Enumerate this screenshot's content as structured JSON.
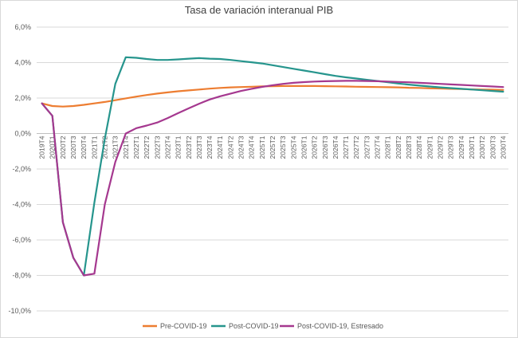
{
  "chart_data": {
    "type": "line",
    "title": "Tasa de variación interanual PIB",
    "xlabel": "",
    "ylabel": "",
    "ylim": [
      -10,
      6
    ],
    "yticks": [
      6,
      4,
      2,
      0,
      -2,
      -4,
      -6,
      -8,
      -10
    ],
    "ytick_labels": [
      "6,0%",
      "4,0%",
      "2,0%",
      "0,0%",
      "-2,0%",
      "-4,0%",
      "-6,0%",
      "-8,0%",
      "-10,0%"
    ],
    "grid": "horizontal",
    "legend_position": "bottom",
    "categories": [
      "2019T4",
      "2020T1",
      "2020T2",
      "2020T3",
      "2020T4",
      "2021T1",
      "2021T2",
      "2021T3",
      "2021T4",
      "2022T1",
      "2022T2",
      "2022T3",
      "2022T4",
      "2023T1",
      "2023T2",
      "2023T3",
      "2023T4",
      "2024T1",
      "2024T2",
      "2024T3",
      "2024T4",
      "2025T1",
      "2025T2",
      "2025T3",
      "2025T4",
      "2026T1",
      "2026T2",
      "2026T3",
      "2026T4",
      "2027T1",
      "2027T2",
      "2027T3",
      "2027T4",
      "2028T1",
      "2028T2",
      "2028T3",
      "2028T4",
      "2029T1",
      "2029T2",
      "2029T3",
      "2029T4",
      "2030T1",
      "2030T2",
      "2030T3",
      "2030T4"
    ],
    "series": [
      {
        "name": "Pre-COVID-19",
        "color": "#ED7D31",
        "values": [
          1.7,
          1.55,
          1.52,
          1.55,
          1.62,
          1.7,
          1.78,
          1.88,
          1.98,
          2.08,
          2.17,
          2.25,
          2.32,
          2.38,
          2.43,
          2.48,
          2.53,
          2.57,
          2.6,
          2.62,
          2.64,
          2.66,
          2.67,
          2.68,
          2.68,
          2.68,
          2.68,
          2.67,
          2.66,
          2.65,
          2.64,
          2.63,
          2.62,
          2.61,
          2.6,
          2.58,
          2.57,
          2.55,
          2.54,
          2.52,
          2.51,
          2.49,
          2.48,
          2.47,
          2.46
        ]
      },
      {
        "name": "Post-COVID-19",
        "color": "#26958D",
        "values": [
          1.7,
          1.0,
          -5.0,
          -7.0,
          -8.0,
          -3.9,
          -0.3,
          2.8,
          4.3,
          4.27,
          4.2,
          4.15,
          4.15,
          4.18,
          4.22,
          4.25,
          4.22,
          4.2,
          4.15,
          4.08,
          4.02,
          3.95,
          3.85,
          3.75,
          3.65,
          3.55,
          3.45,
          3.35,
          3.25,
          3.17,
          3.1,
          3.03,
          2.96,
          2.89,
          2.82,
          2.76,
          2.7,
          2.65,
          2.6,
          2.56,
          2.52,
          2.48,
          2.44,
          2.4,
          2.36
        ]
      },
      {
        "name": "Post-COVID-19, Estresado",
        "color": "#A5388F",
        "values": [
          1.7,
          1.0,
          -5.0,
          -7.0,
          -8.0,
          -7.9,
          -4.0,
          -1.6,
          0.0,
          0.3,
          0.45,
          0.62,
          0.87,
          1.15,
          1.42,
          1.68,
          1.92,
          2.1,
          2.25,
          2.4,
          2.52,
          2.63,
          2.72,
          2.8,
          2.86,
          2.9,
          2.93,
          2.95,
          2.96,
          2.97,
          2.97,
          2.96,
          2.95,
          2.93,
          2.91,
          2.89,
          2.86,
          2.83,
          2.8,
          2.77,
          2.74,
          2.71,
          2.68,
          2.65,
          2.62
        ]
      }
    ]
  }
}
